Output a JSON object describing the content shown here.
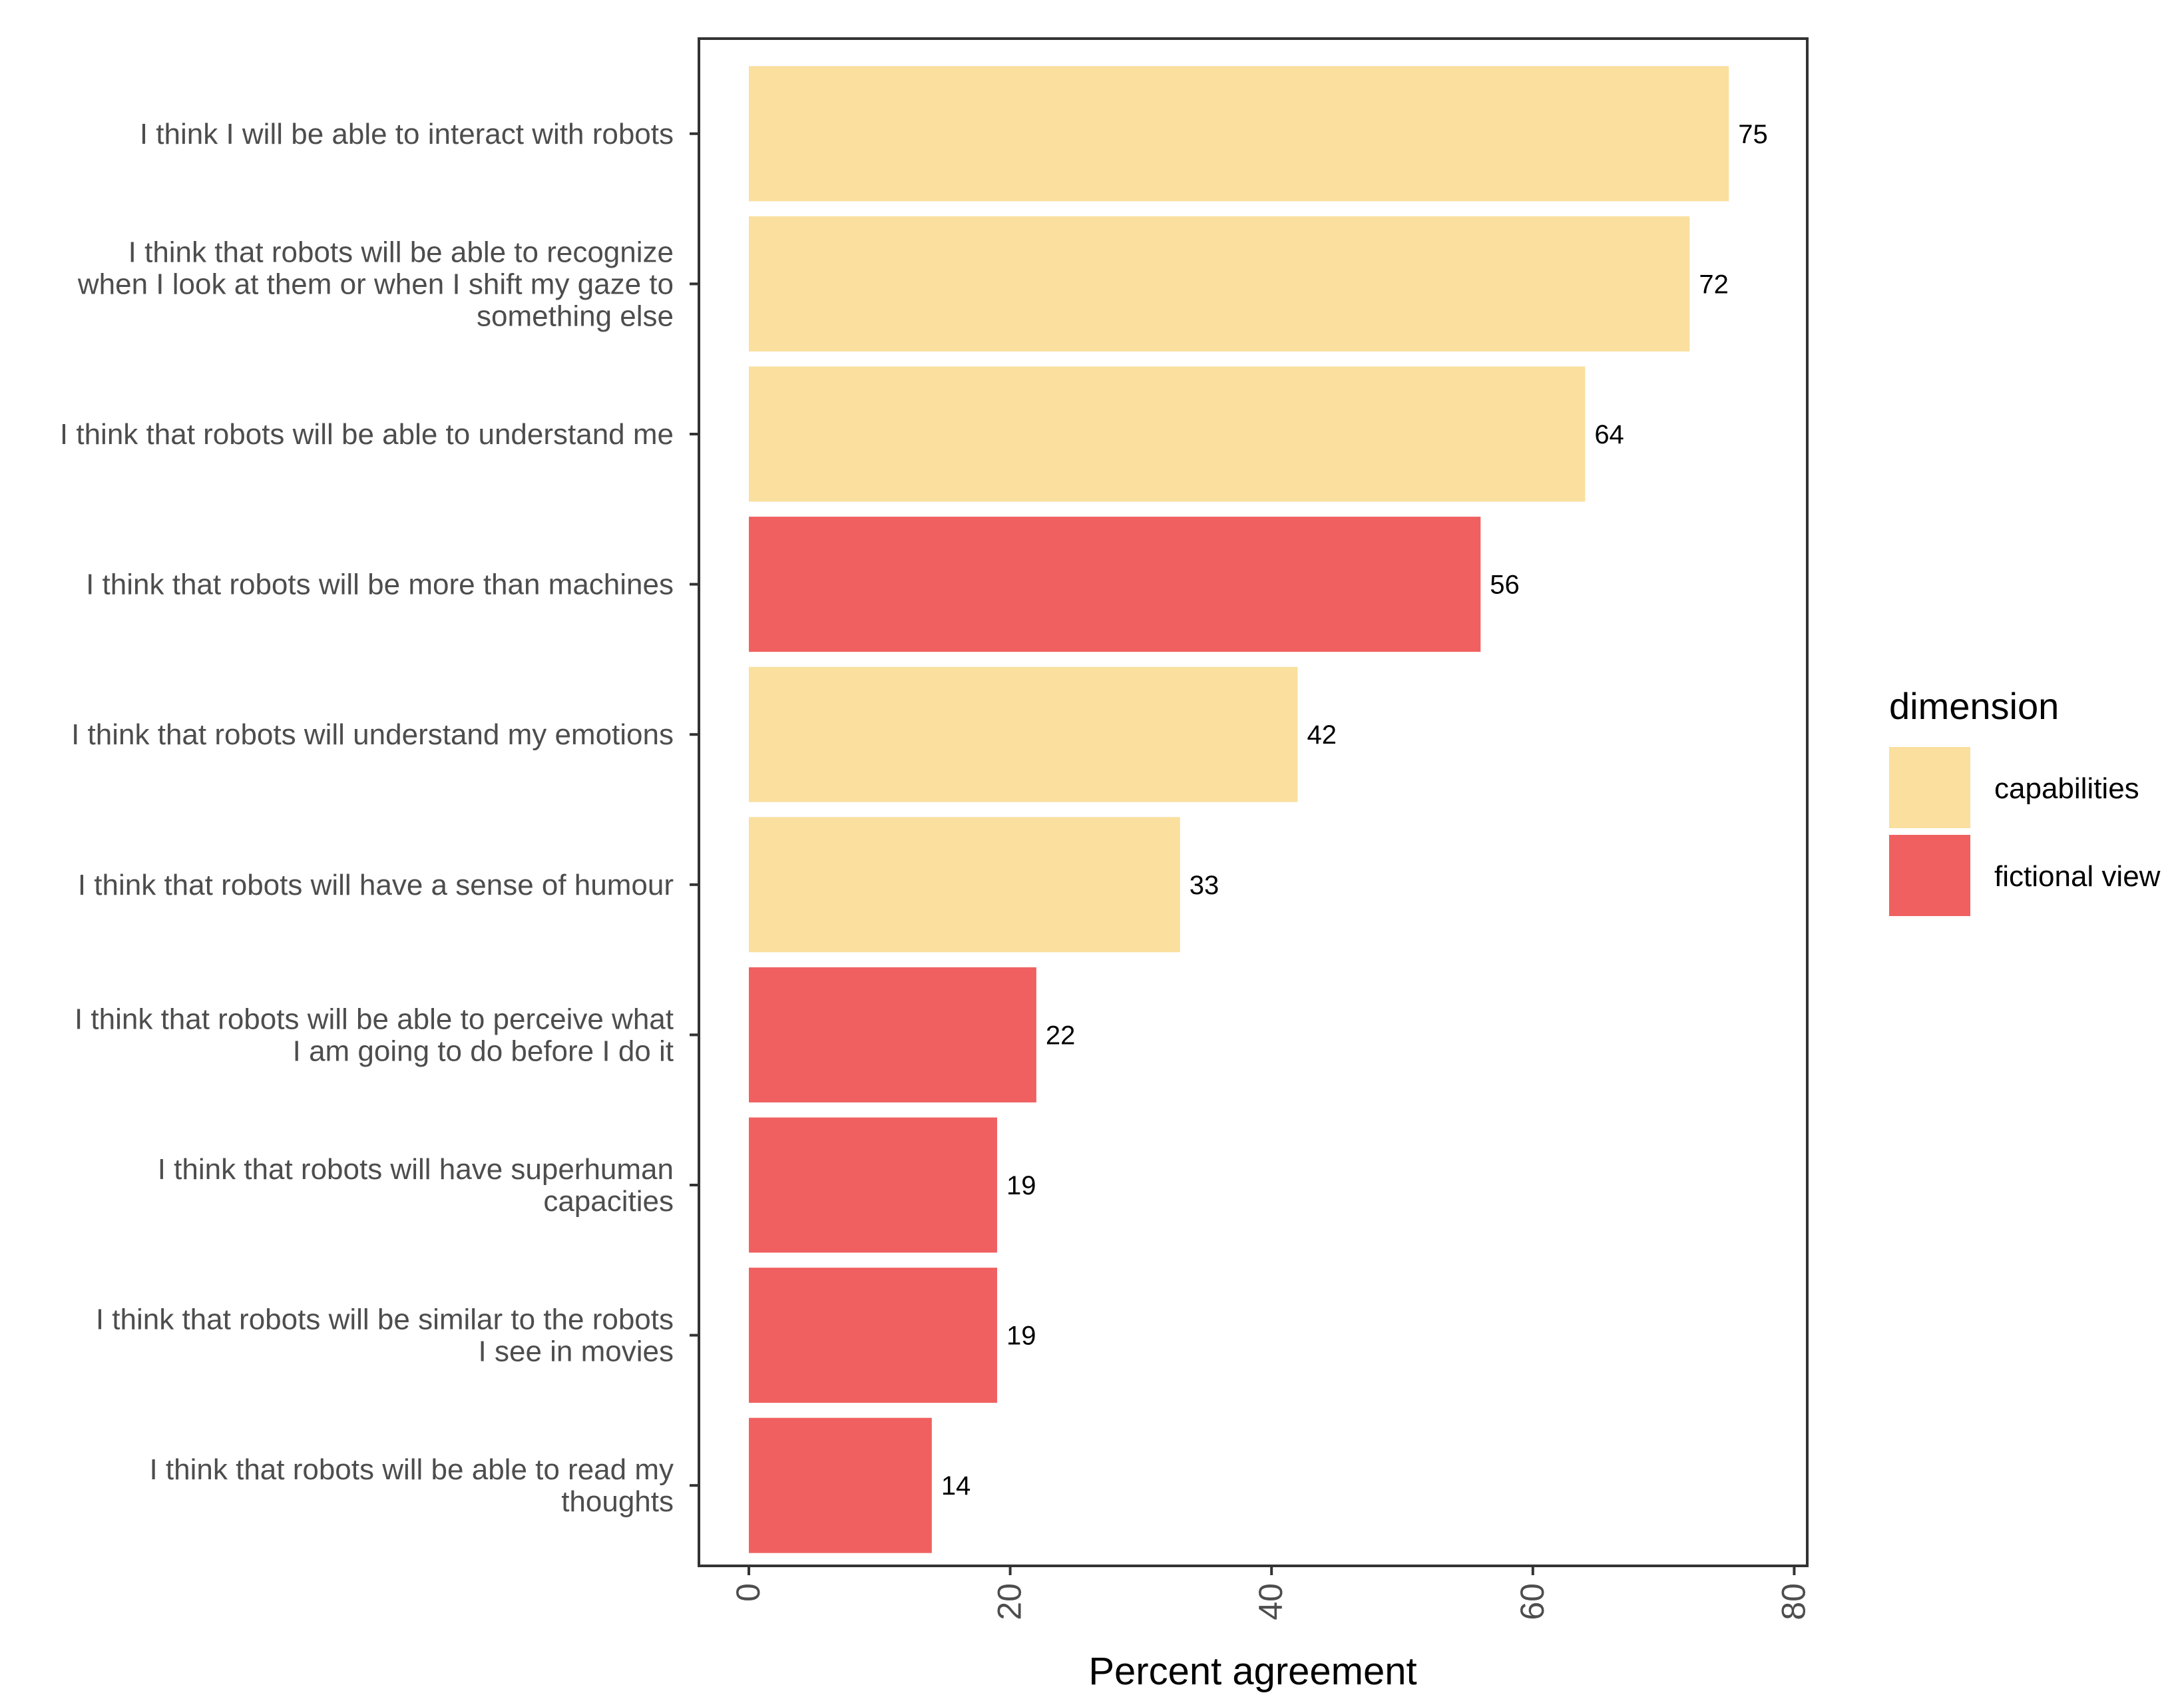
{
  "chart_data": {
    "type": "bar",
    "orientation": "horizontal",
    "xlabel": "Percent agreement",
    "xlim": [
      0,
      80
    ],
    "xticks": [
      0,
      20,
      40,
      60,
      80
    ],
    "grid": false,
    "legend_title": "dimension",
    "legend_position": "right",
    "legend": [
      {
        "name": "capabilities",
        "color": "#FADF9E"
      },
      {
        "name": "fictional view",
        "color": "#F06060"
      }
    ],
    "bars": [
      {
        "label": [
          "I think I will be able to interact with robots"
        ],
        "value": 75,
        "value_label": "75",
        "dimension": "capabilities"
      },
      {
        "label": [
          "I think that robots will be able to recognize",
          "when I look at them or when I shift my gaze to",
          "something else"
        ],
        "value": 72,
        "value_label": "72",
        "dimension": "capabilities"
      },
      {
        "label": [
          "I think that robots will be able to understand me"
        ],
        "value": 64,
        "value_label": "64",
        "dimension": "capabilities"
      },
      {
        "label": [
          "I think that robots will be more than machines"
        ],
        "value": 56,
        "value_label": "56",
        "dimension": "fictional view"
      },
      {
        "label": [
          "I think that robots will understand my emotions"
        ],
        "value": 42,
        "value_label": "42",
        "dimension": "capabilities"
      },
      {
        "label": [
          "I think that robots will have a sense of humour"
        ],
        "value": 33,
        "value_label": "33",
        "dimension": "capabilities"
      },
      {
        "label": [
          "I think that robots will be able to perceive what",
          "I am going to do before I do it"
        ],
        "value": 22,
        "value_label": "22",
        "dimension": "fictional view"
      },
      {
        "label": [
          "I think that robots will have superhuman",
          "capacities"
        ],
        "value": 19,
        "value_label": "19",
        "dimension": "fictional view"
      },
      {
        "label": [
          "I think that robots will be similar to the robots",
          "I see in movies"
        ],
        "value": 19,
        "value_label": "19",
        "dimension": "fictional view"
      },
      {
        "label": [
          "I think that robots will be able to read my",
          "thoughts"
        ],
        "value": 14,
        "value_label": "14",
        "dimension": "fictional view"
      }
    ]
  }
}
